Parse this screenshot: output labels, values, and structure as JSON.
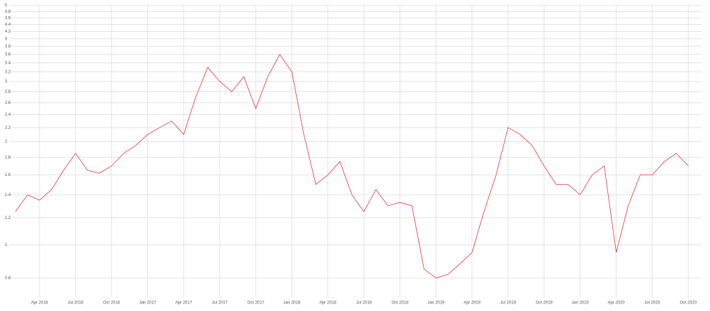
{
  "chart_data": {
    "type": "line",
    "x": [
      "2016-02",
      "2016-03",
      "2016-04",
      "2016-05",
      "2016-06",
      "2016-07",
      "2016-08",
      "2016-09",
      "2016-10",
      "2016-11",
      "2016-12",
      "2017-01",
      "2017-02",
      "2017-03",
      "2017-04",
      "2017-05",
      "2017-06",
      "2017-07",
      "2017-08",
      "2017-09",
      "2017-10",
      "2017-11",
      "2017-12",
      "2018-01",
      "2018-02",
      "2018-03",
      "2018-04",
      "2018-05",
      "2018-06",
      "2018-07",
      "2018-08",
      "2018-09",
      "2018-10",
      "2018-11",
      "2018-12",
      "2019-01",
      "2019-02",
      "2019-03",
      "2019-04",
      "2019-05",
      "2019-06",
      "2019-07",
      "2019-08",
      "2019-09",
      "2019-10",
      "2019-11",
      "2019-12",
      "2020-01",
      "2020-02",
      "2020-03",
      "2020-04",
      "2020-05",
      "2020-06",
      "2020-07",
      "2020-08",
      "2020-09",
      "2020-10"
    ],
    "series": [
      {
        "color": "#f03030",
        "values": [
          1.25,
          1.4,
          1.35,
          1.45,
          1.65,
          1.85,
          1.65,
          1.62,
          1.7,
          1.85,
          1.95,
          2.1,
          2.2,
          2.3,
          2.1,
          2.7,
          3.3,
          3.0,
          2.8,
          3.1,
          2.5,
          3.1,
          3.6,
          3.2,
          2.1,
          1.5,
          1.6,
          1.75,
          1.4,
          1.25,
          1.45,
          1.3,
          1.33,
          1.3,
          0.85,
          0.8,
          0.82,
          0.88,
          0.95,
          1.25,
          1.6,
          2.2,
          2.1,
          1.95,
          1.7,
          1.5,
          1.5,
          1.4,
          1.6,
          1.7,
          0.95,
          1.3,
          1.6,
          1.6,
          1.75,
          1.85,
          1.7
        ]
      }
    ],
    "xlim": [
      "2016-01",
      "2020-11"
    ],
    "xticks": [
      {
        "value": "2016-04",
        "label": "Apr 2016"
      },
      {
        "value": "2016-07",
        "label": "Jul 2016"
      },
      {
        "value": "2016-10",
        "label": "Oct 2016"
      },
      {
        "value": "2017-01",
        "label": "Jan 2017"
      },
      {
        "value": "2017-04",
        "label": "Apr 2017"
      },
      {
        "value": "2017-07",
        "label": "Jul 2017"
      },
      {
        "value": "2017-10",
        "label": "Oct 2017"
      },
      {
        "value": "2018-01",
        "label": "Jan 2018"
      },
      {
        "value": "2018-04",
        "label": "Apr 2018"
      },
      {
        "value": "2018-07",
        "label": "Jul 2018"
      },
      {
        "value": "2018-10",
        "label": "Oct 2018"
      },
      {
        "value": "2019-01",
        "label": "Jan 2019"
      },
      {
        "value": "2019-04",
        "label": "Apr 2019"
      },
      {
        "value": "2019-07",
        "label": "Jul 2019"
      },
      {
        "value": "2019-10",
        "label": "Oct 2019"
      },
      {
        "value": "2020-01",
        "label": "Jan 2020"
      },
      {
        "value": "2020-04",
        "label": "Apr 2020"
      },
      {
        "value": "2020-07",
        "label": "Jul 2020"
      },
      {
        "value": "2020-10",
        "label": "Oct 2020"
      }
    ],
    "ylim": [
      0.7,
      5
    ],
    "yticks": [
      0.8,
      1,
      1.2,
      1.4,
      1.6,
      1.8,
      2,
      2.2,
      2.4,
      2.6,
      2.8,
      3,
      3.2,
      3.4,
      3.6,
      3.8,
      4,
      4.2,
      4.4,
      4.6,
      4.8,
      5
    ],
    "log_y": true,
    "grid": true
  }
}
